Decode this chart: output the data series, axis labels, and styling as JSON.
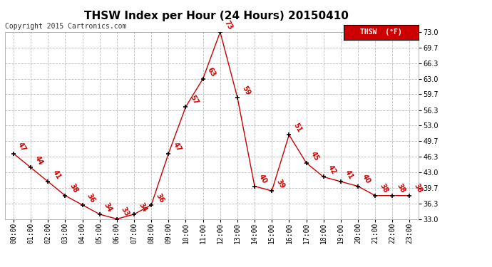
{
  "title": "THSW Index per Hour (24 Hours) 20150410",
  "copyright": "Copyright 2015 Cartronics.com",
  "legend_label": "THSW  (°F)",
  "hours": [
    0,
    1,
    2,
    3,
    4,
    5,
    6,
    7,
    8,
    9,
    10,
    11,
    12,
    13,
    14,
    15,
    16,
    17,
    18,
    19,
    20,
    21,
    22,
    23
  ],
  "values": [
    47,
    44,
    41,
    38,
    36,
    34,
    33,
    34,
    36,
    47,
    57,
    63,
    73,
    59,
    40,
    39,
    51,
    45,
    42,
    41,
    40,
    38,
    38,
    38
  ],
  "x_labels": [
    "00:00",
    "01:00",
    "02:00",
    "03:00",
    "04:00",
    "05:00",
    "06:00",
    "07:00",
    "08:00",
    "09:00",
    "10:00",
    "11:00",
    "12:00",
    "13:00",
    "14:00",
    "15:00",
    "16:00",
    "17:00",
    "18:00",
    "19:00",
    "20:00",
    "21:00",
    "22:00",
    "23:00"
  ],
  "y_ticks": [
    33.0,
    36.3,
    39.7,
    43.0,
    46.3,
    49.7,
    53.0,
    56.3,
    59.7,
    63.0,
    66.3,
    69.7,
    73.0
  ],
  "ylim": [
    33.0,
    73.0
  ],
  "line_color": "#cc0000",
  "marker_color": "#000000",
  "label_color": "#cc0000",
  "background_color": "#ffffff",
  "grid_color": "#bbbbbb",
  "title_fontsize": 11,
  "copyright_fontsize": 7,
  "label_fontsize": 7,
  "tick_fontsize": 7,
  "legend_bg": "#cc0000",
  "legend_text_color": "#ffffff"
}
